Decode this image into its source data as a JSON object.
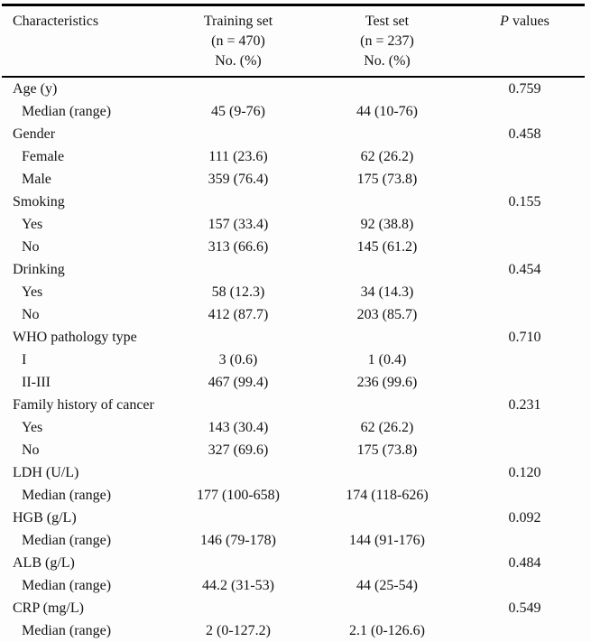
{
  "table": {
    "title_semantic": "Baseline characteristics of training and test sets",
    "header": {
      "col1": "Characteristics",
      "col2_lines": [
        "Training set",
        "(n = 470)",
        "No. (%)"
      ],
      "col3_lines": [
        "Test set",
        "(n = 237)",
        "No. (%)"
      ],
      "col4_italic": "P",
      "col4_rest": " values"
    },
    "rows": [
      {
        "label": "Age (y)",
        "indent": false,
        "training": "",
        "test": "",
        "p": "0.759"
      },
      {
        "label": "Median (range)",
        "indent": true,
        "training": "45 (9-76)",
        "test": "44 (10-76)",
        "p": ""
      },
      {
        "label": "Gender",
        "indent": false,
        "training": "",
        "test": "",
        "p": "0.458"
      },
      {
        "label": "Female",
        "indent": true,
        "training": "111 (23.6)",
        "test": "62 (26.2)",
        "p": ""
      },
      {
        "label": "Male",
        "indent": true,
        "training": "359 (76.4)",
        "test": "175 (73.8)",
        "p": ""
      },
      {
        "label": "Smoking",
        "indent": false,
        "training": "",
        "test": "",
        "p": "0.155"
      },
      {
        "label": "Yes",
        "indent": true,
        "training": "157 (33.4)",
        "test": "92 (38.8)",
        "p": ""
      },
      {
        "label": "No",
        "indent": true,
        "training": "313 (66.6)",
        "test": "145 (61.2)",
        "p": ""
      },
      {
        "label": "Drinking",
        "indent": false,
        "training": "",
        "test": "",
        "p": "0.454"
      },
      {
        "label": "Yes",
        "indent": true,
        "training": "58 (12.3)",
        "test": "34 (14.3)",
        "p": ""
      },
      {
        "label": "No",
        "indent": true,
        "training": "412 (87.7)",
        "test": "203 (85.7)",
        "p": ""
      },
      {
        "label": "WHO pathology type",
        "indent": false,
        "training": "",
        "test": "",
        "p": "0.710"
      },
      {
        "label": "I",
        "indent": true,
        "training": "3 (0.6)",
        "test": "1 (0.4)",
        "p": ""
      },
      {
        "label": "II-III",
        "indent": true,
        "training": "467 (99.4)",
        "test": "236 (99.6)",
        "p": ""
      },
      {
        "label": "Family history of cancer",
        "indent": false,
        "training": "",
        "test": "",
        "p": "0.231"
      },
      {
        "label": "Yes",
        "indent": true,
        "training": "143 (30.4)",
        "test": "62 (26.2)",
        "p": ""
      },
      {
        "label": "No",
        "indent": true,
        "training": "327 (69.6)",
        "test": "175 (73.8)",
        "p": ""
      },
      {
        "label": "LDH (U/L)",
        "indent": false,
        "training": "",
        "test": "",
        "p": "0.120"
      },
      {
        "label": "Median (range)",
        "indent": true,
        "training": "177 (100-658)",
        "test": "174 (118-626)",
        "p": ""
      },
      {
        "label": "HGB (g/L)",
        "indent": false,
        "training": "",
        "test": "",
        "p": "0.092"
      },
      {
        "label": "Median (range)",
        "indent": true,
        "training": "146 (79-178)",
        "test": "144 (91-176)",
        "p": ""
      },
      {
        "label": "ALB (g/L)",
        "indent": false,
        "training": "",
        "test": "",
        "p": "0.484"
      },
      {
        "label": "Median (range)",
        "indent": true,
        "training": "44.2 (31-53)",
        "test": "44 (25-54)",
        "p": ""
      },
      {
        "label": "CRP (mg/L)",
        "indent": false,
        "training": "",
        "test": "",
        "p": "0.549"
      },
      {
        "label": "Median (range)",
        "indent": true,
        "training": "2 (0-127.2)",
        "test": "2.1 (0-126.6)",
        "p": ""
      }
    ],
    "colors": {
      "background": "#fdfdfd",
      "text": "#141414",
      "rule": "#000000"
    }
  }
}
